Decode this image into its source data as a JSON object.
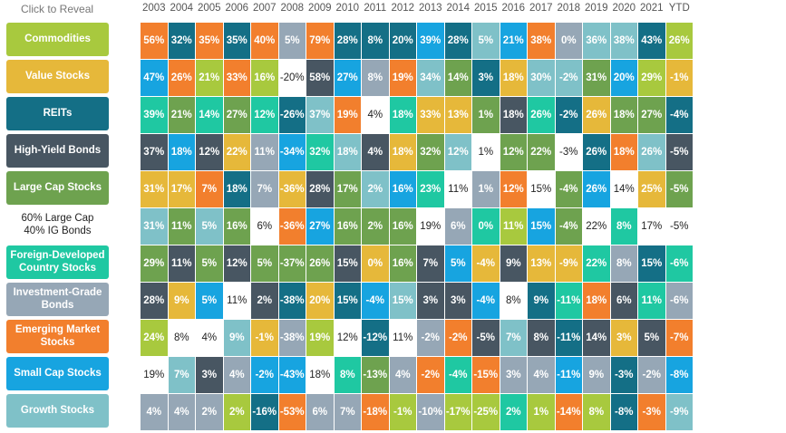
{
  "header": {
    "click_to_reveal": "Click to Reveal",
    "years": [
      "2003",
      "2004",
      "2005",
      "2006",
      "2007",
      "2008",
      "2009",
      "2010",
      "2011",
      "2012",
      "2013",
      "2014",
      "2015",
      "2016",
      "2017",
      "2018",
      "2019",
      "2020",
      "2021",
      "YTD"
    ]
  },
  "colors": {
    "commodities": "#a8c93e",
    "value_stocks": "#e6b83a",
    "reits": "#146f86",
    "high_yield_bonds": "#485662",
    "large_cap_stocks": "#6ea24f",
    "sixty_forty": "#ffffff",
    "foreign_developed": "#1fc8a2",
    "investment_grade_bonds": "#96a7b6",
    "emerging_market_stocks": "#f27f2d",
    "small_cap_stocks": "#17a4e0",
    "growth_stocks": "#7fc1c8"
  },
  "categories": [
    {
      "label": "Commodities",
      "key": "commodities"
    },
    {
      "label": "Value Stocks",
      "key": "value_stocks"
    },
    {
      "label": "REITs",
      "key": "reits"
    },
    {
      "label": "High-Yield Bonds",
      "key": "high_yield_bonds"
    },
    {
      "label": "Large Cap Stocks",
      "key": "large_cap_stocks"
    },
    {
      "label": "60% Large Cap\n40% IG Bonds",
      "key": "sixty_forty"
    },
    {
      "label": "Foreign-Developed\nCountry Stocks",
      "key": "foreign_developed"
    },
    {
      "label": "Investment-Grade\nBonds",
      "key": "investment_grade_bonds"
    },
    {
      "label": "Emerging Market\nStocks",
      "key": "emerging_market_stocks"
    },
    {
      "label": "Small Cap Stocks",
      "key": "small_cap_stocks"
    },
    {
      "label": "Growth Stocks",
      "key": "growth_stocks"
    }
  ],
  "grid": [
    [
      {
        "v": "56%",
        "c": "emerging_market_stocks"
      },
      {
        "v": "32%",
        "c": "reits"
      },
      {
        "v": "35%",
        "c": "emerging_market_stocks"
      },
      {
        "v": "35%",
        "c": "reits"
      },
      {
        "v": "40%",
        "c": "emerging_market_stocks"
      },
      {
        "v": "5%",
        "c": "investment_grade_bonds"
      },
      {
        "v": "79%",
        "c": "emerging_market_stocks"
      },
      {
        "v": "28%",
        "c": "reits"
      },
      {
        "v": "8%",
        "c": "reits"
      },
      {
        "v": "20%",
        "c": "reits"
      },
      {
        "v": "39%",
        "c": "small_cap_stocks"
      },
      {
        "v": "28%",
        "c": "reits"
      },
      {
        "v": "5%",
        "c": "growth_stocks"
      },
      {
        "v": "21%",
        "c": "small_cap_stocks"
      },
      {
        "v": "38%",
        "c": "emerging_market_stocks"
      },
      {
        "v": "0%",
        "c": "investment_grade_bonds"
      },
      {
        "v": "36%",
        "c": "growth_stocks"
      },
      {
        "v": "38%",
        "c": "growth_stocks"
      },
      {
        "v": "43%",
        "c": "reits"
      },
      {
        "v": "26%",
        "c": "commodities"
      }
    ],
    [
      {
        "v": "47%",
        "c": "small_cap_stocks"
      },
      {
        "v": "26%",
        "c": "emerging_market_stocks"
      },
      {
        "v": "21%",
        "c": "commodities"
      },
      {
        "v": "33%",
        "c": "emerging_market_stocks"
      },
      {
        "v": "16%",
        "c": "commodities"
      },
      {
        "v": "-20%",
        "c": "sixty_forty"
      },
      {
        "v": "58%",
        "c": "high_yield_bonds"
      },
      {
        "v": "27%",
        "c": "small_cap_stocks"
      },
      {
        "v": "8%",
        "c": "investment_grade_bonds"
      },
      {
        "v": "19%",
        "c": "emerging_market_stocks"
      },
      {
        "v": "34%",
        "c": "growth_stocks"
      },
      {
        "v": "14%",
        "c": "large_cap_stocks"
      },
      {
        "v": "3%",
        "c": "reits"
      },
      {
        "v": "18%",
        "c": "value_stocks"
      },
      {
        "v": "30%",
        "c": "growth_stocks"
      },
      {
        "v": "-2%",
        "c": "growth_stocks"
      },
      {
        "v": "31%",
        "c": "large_cap_stocks"
      },
      {
        "v": "20%",
        "c": "small_cap_stocks"
      },
      {
        "v": "29%",
        "c": "commodities"
      },
      {
        "v": "-1%",
        "c": "value_stocks"
      }
    ],
    [
      {
        "v": "39%",
        "c": "foreign_developed"
      },
      {
        "v": "21%",
        "c": "large_cap_stocks"
      },
      {
        "v": "14%",
        "c": "foreign_developed"
      },
      {
        "v": "27%",
        "c": "large_cap_stocks"
      },
      {
        "v": "12%",
        "c": "foreign_developed"
      },
      {
        "v": "-26%",
        "c": "reits"
      },
      {
        "v": "37%",
        "c": "growth_stocks"
      },
      {
        "v": "19%",
        "c": "emerging_market_stocks"
      },
      {
        "v": "4%",
        "c": "sixty_forty"
      },
      {
        "v": "18%",
        "c": "foreign_developed"
      },
      {
        "v": "33%",
        "c": "value_stocks"
      },
      {
        "v": "13%",
        "c": "value_stocks"
      },
      {
        "v": "1%",
        "c": "large_cap_stocks"
      },
      {
        "v": "18%",
        "c": "high_yield_bonds"
      },
      {
        "v": "26%",
        "c": "foreign_developed"
      },
      {
        "v": "-2%",
        "c": "reits"
      },
      {
        "v": "26%",
        "c": "value_stocks"
      },
      {
        "v": "18%",
        "c": "large_cap_stocks"
      },
      {
        "v": "27%",
        "c": "large_cap_stocks"
      },
      {
        "v": "-4%",
        "c": "reits"
      }
    ],
    [
      {
        "v": "37%",
        "c": "high_yield_bonds"
      },
      {
        "v": "18%",
        "c": "small_cap_stocks"
      },
      {
        "v": "12%",
        "c": "high_yield_bonds"
      },
      {
        "v": "22%",
        "c": "value_stocks"
      },
      {
        "v": "11%",
        "c": "investment_grade_bonds"
      },
      {
        "v": "-34%",
        "c": "small_cap_stocks"
      },
      {
        "v": "32%",
        "c": "foreign_developed"
      },
      {
        "v": "18%",
        "c": "growth_stocks"
      },
      {
        "v": "4%",
        "c": "high_yield_bonds"
      },
      {
        "v": "18%",
        "c": "value_stocks"
      },
      {
        "v": "32%",
        "c": "large_cap_stocks"
      },
      {
        "v": "12%",
        "c": "growth_stocks"
      },
      {
        "v": "1%",
        "c": "sixty_forty"
      },
      {
        "v": "12%",
        "c": "large_cap_stocks"
      },
      {
        "v": "22%",
        "c": "large_cap_stocks"
      },
      {
        "v": "-3%",
        "c": "sixty_forty"
      },
      {
        "v": "26%",
        "c": "reits"
      },
      {
        "v": "18%",
        "c": "emerging_market_stocks"
      },
      {
        "v": "26%",
        "c": "growth_stocks"
      },
      {
        "v": "-5%",
        "c": "high_yield_bonds"
      }
    ],
    [
      {
        "v": "31%",
        "c": "value_stocks"
      },
      {
        "v": "17%",
        "c": "value_stocks"
      },
      {
        "v": "7%",
        "c": "emerging_market_stocks"
      },
      {
        "v": "18%",
        "c": "reits"
      },
      {
        "v": "7%",
        "c": "investment_grade_bonds"
      },
      {
        "v": "-36%",
        "c": "value_stocks"
      },
      {
        "v": "28%",
        "c": "high_yield_bonds"
      },
      {
        "v": "17%",
        "c": "large_cap_stocks"
      },
      {
        "v": "2%",
        "c": "growth_stocks"
      },
      {
        "v": "16%",
        "c": "small_cap_stocks"
      },
      {
        "v": "23%",
        "c": "foreign_developed"
      },
      {
        "v": "11%",
        "c": "sixty_forty"
      },
      {
        "v": "1%",
        "c": "investment_grade_bonds"
      },
      {
        "v": "12%",
        "c": "emerging_market_stocks"
      },
      {
        "v": "15%",
        "c": "sixty_forty"
      },
      {
        "v": "-4%",
        "c": "large_cap_stocks"
      },
      {
        "v": "26%",
        "c": "small_cap_stocks"
      },
      {
        "v": "14%",
        "c": "sixty_forty"
      },
      {
        "v": "25%",
        "c": "value_stocks"
      },
      {
        "v": "-5%",
        "c": "large_cap_stocks"
      }
    ],
    [
      {
        "v": "31%",
        "c": "growth_stocks"
      },
      {
        "v": "11%",
        "c": "large_cap_stocks"
      },
      {
        "v": "5%",
        "c": "growth_stocks"
      },
      {
        "v": "16%",
        "c": "large_cap_stocks"
      },
      {
        "v": "6%",
        "c": "sixty_forty"
      },
      {
        "v": "-36%",
        "c": "emerging_market_stocks"
      },
      {
        "v": "27%",
        "c": "small_cap_stocks"
      },
      {
        "v": "16%",
        "c": "large_cap_stocks"
      },
      {
        "v": "2%",
        "c": "large_cap_stocks"
      },
      {
        "v": "16%",
        "c": "large_cap_stocks"
      },
      {
        "v": "19%",
        "c": "sixty_forty"
      },
      {
        "v": "6%",
        "c": "investment_grade_bonds"
      },
      {
        "v": "0%",
        "c": "foreign_developed"
      },
      {
        "v": "11%",
        "c": "commodities"
      },
      {
        "v": "15%",
        "c": "small_cap_stocks"
      },
      {
        "v": "-4%",
        "c": "large_cap_stocks"
      },
      {
        "v": "22%",
        "c": "sixty_forty"
      },
      {
        "v": "8%",
        "c": "foreign_developed"
      },
      {
        "v": "17%",
        "c": "sixty_forty"
      },
      {
        "v": "-5%",
        "c": "sixty_forty"
      }
    ],
    [
      {
        "v": "29%",
        "c": "large_cap_stocks"
      },
      {
        "v": "11%",
        "c": "high_yield_bonds"
      },
      {
        "v": "5%",
        "c": "large_cap_stocks"
      },
      {
        "v": "12%",
        "c": "high_yield_bonds"
      },
      {
        "v": "5%",
        "c": "large_cap_stocks"
      },
      {
        "v": "-37%",
        "c": "large_cap_stocks"
      },
      {
        "v": "26%",
        "c": "large_cap_stocks"
      },
      {
        "v": "15%",
        "c": "high_yield_bonds"
      },
      {
        "v": "0%",
        "c": "value_stocks"
      },
      {
        "v": "16%",
        "c": "large_cap_stocks"
      },
      {
        "v": "7%",
        "c": "high_yield_bonds"
      },
      {
        "v": "5%",
        "c": "small_cap_stocks"
      },
      {
        "v": "-4%",
        "c": "value_stocks"
      },
      {
        "v": "9%",
        "c": "high_yield_bonds"
      },
      {
        "v": "13%",
        "c": "value_stocks"
      },
      {
        "v": "-9%",
        "c": "value_stocks"
      },
      {
        "v": "22%",
        "c": "foreign_developed"
      },
      {
        "v": "8%",
        "c": "investment_grade_bonds"
      },
      {
        "v": "15%",
        "c": "reits"
      },
      {
        "v": "-6%",
        "c": "foreign_developed"
      }
    ],
    [
      {
        "v": "28%",
        "c": "high_yield_bonds"
      },
      {
        "v": "9%",
        "c": "value_stocks"
      },
      {
        "v": "5%",
        "c": "small_cap_stocks"
      },
      {
        "v": "11%",
        "c": "sixty_forty"
      },
      {
        "v": "2%",
        "c": "high_yield_bonds"
      },
      {
        "v": "-38%",
        "c": "reits"
      },
      {
        "v": "20%",
        "c": "value_stocks"
      },
      {
        "v": "15%",
        "c": "reits"
      },
      {
        "v": "-4%",
        "c": "small_cap_stocks"
      },
      {
        "v": "15%",
        "c": "growth_stocks"
      },
      {
        "v": "3%",
        "c": "high_yield_bonds"
      },
      {
        "v": "3%",
        "c": "high_yield_bonds"
      },
      {
        "v": "-4%",
        "c": "small_cap_stocks"
      },
      {
        "v": "8%",
        "c": "sixty_forty"
      },
      {
        "v": "9%",
        "c": "reits"
      },
      {
        "v": "-11%",
        "c": "foreign_developed"
      },
      {
        "v": "18%",
        "c": "emerging_market_stocks"
      },
      {
        "v": "6%",
        "c": "high_yield_bonds"
      },
      {
        "v": "11%",
        "c": "foreign_developed"
      },
      {
        "v": "-6%",
        "c": "investment_grade_bonds"
      }
    ],
    [
      {
        "v": "24%",
        "c": "commodities"
      },
      {
        "v": "8%",
        "c": "sixty_forty"
      },
      {
        "v": "4%",
        "c": "sixty_forty"
      },
      {
        "v": "9%",
        "c": "growth_stocks"
      },
      {
        "v": "-1%",
        "c": "value_stocks"
      },
      {
        "v": "-38%",
        "c": "investment_grade_bonds"
      },
      {
        "v": "19%",
        "c": "commodities"
      },
      {
        "v": "12%",
        "c": "sixty_forty"
      },
      {
        "v": "-12%",
        "c": "reits"
      },
      {
        "v": "11%",
        "c": "sixty_forty"
      },
      {
        "v": "-2%",
        "c": "investment_grade_bonds"
      },
      {
        "v": "-2%",
        "c": "emerging_market_stocks"
      },
      {
        "v": "-5%",
        "c": "high_yield_bonds"
      },
      {
        "v": "7%",
        "c": "growth_stocks"
      },
      {
        "v": "8%",
        "c": "high_yield_bonds"
      },
      {
        "v": "-11%",
        "c": "reits"
      },
      {
        "v": "14%",
        "c": "high_yield_bonds"
      },
      {
        "v": "3%",
        "c": "value_stocks"
      },
      {
        "v": "5%",
        "c": "high_yield_bonds"
      },
      {
        "v": "-7%",
        "c": "emerging_market_stocks"
      }
    ],
    [
      {
        "v": "19%",
        "c": "sixty_forty"
      },
      {
        "v": "7%",
        "c": "growth_stocks"
      },
      {
        "v": "3%",
        "c": "high_yield_bonds"
      },
      {
        "v": "4%",
        "c": "investment_grade_bonds"
      },
      {
        "v": "-2%",
        "c": "small_cap_stocks"
      },
      {
        "v": "-43%",
        "c": "small_cap_stocks"
      },
      {
        "v": "18%",
        "c": "sixty_forty"
      },
      {
        "v": "8%",
        "c": "foreign_developed"
      },
      {
        "v": "-13%",
        "c": "large_cap_stocks"
      },
      {
        "v": "4%",
        "c": "investment_grade_bonds"
      },
      {
        "v": "-2%",
        "c": "emerging_market_stocks"
      },
      {
        "v": "-4%",
        "c": "foreign_developed"
      },
      {
        "v": "-15%",
        "c": "emerging_market_stocks"
      },
      {
        "v": "3%",
        "c": "investment_grade_bonds"
      },
      {
        "v": "4%",
        "c": "investment_grade_bonds"
      },
      {
        "v": "-11%",
        "c": "small_cap_stocks"
      },
      {
        "v": "9%",
        "c": "investment_grade_bonds"
      },
      {
        "v": "-3%",
        "c": "reits"
      },
      {
        "v": "-2%",
        "c": "investment_grade_bonds"
      },
      {
        "v": "-8%",
        "c": "small_cap_stocks"
      }
    ],
    [
      {
        "v": "4%",
        "c": "investment_grade_bonds"
      },
      {
        "v": "4%",
        "c": "investment_grade_bonds"
      },
      {
        "v": "2%",
        "c": "investment_grade_bonds"
      },
      {
        "v": "2%",
        "c": "commodities"
      },
      {
        "v": "-16%",
        "c": "reits"
      },
      {
        "v": "-53%",
        "c": "emerging_market_stocks"
      },
      {
        "v": "6%",
        "c": "investment_grade_bonds"
      },
      {
        "v": "7%",
        "c": "investment_grade_bonds"
      },
      {
        "v": "-18%",
        "c": "emerging_market_stocks"
      },
      {
        "v": "-1%",
        "c": "commodities"
      },
      {
        "v": "-10%",
        "c": "investment_grade_bonds"
      },
      {
        "v": "-17%",
        "c": "commodities"
      },
      {
        "v": "-25%",
        "c": "commodities"
      },
      {
        "v": "2%",
        "c": "foreign_developed"
      },
      {
        "v": "1%",
        "c": "commodities"
      },
      {
        "v": "-14%",
        "c": "emerging_market_stocks"
      },
      {
        "v": "8%",
        "c": "commodities"
      },
      {
        "v": "-8%",
        "c": "reits"
      },
      {
        "v": "-3%",
        "c": "emerging_market_stocks"
      },
      {
        "v": "-9%",
        "c": "growth_stocks"
      }
    ]
  ]
}
